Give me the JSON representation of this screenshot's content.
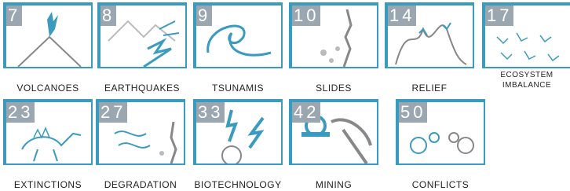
{
  "tiles": [
    {
      "number": 7,
      "label": "VOLCANOES"
    },
    {
      "number": 8,
      "label": "EARTHQUAKES"
    },
    {
      "number": 9,
      "label": "TSUNAMIS"
    },
    {
      "number": 10,
      "label": "SLIDES"
    },
    {
      "number": 14,
      "label": "RELIEF"
    },
    {
      "number": 17,
      "label": "ECOSYSTEM IMBALANCE"
    },
    {
      "number": 23,
      "label": "EXTINCTIONS"
    },
    {
      "number": 27,
      "label": "DEGRADATION"
    },
    {
      "number": 33,
      "label": "BIOTECHNOLOGY"
    },
    {
      "number": 42,
      "label": "MINING"
    },
    {
      "number": 50,
      "label": "CONFLICTS"
    }
  ]
}
